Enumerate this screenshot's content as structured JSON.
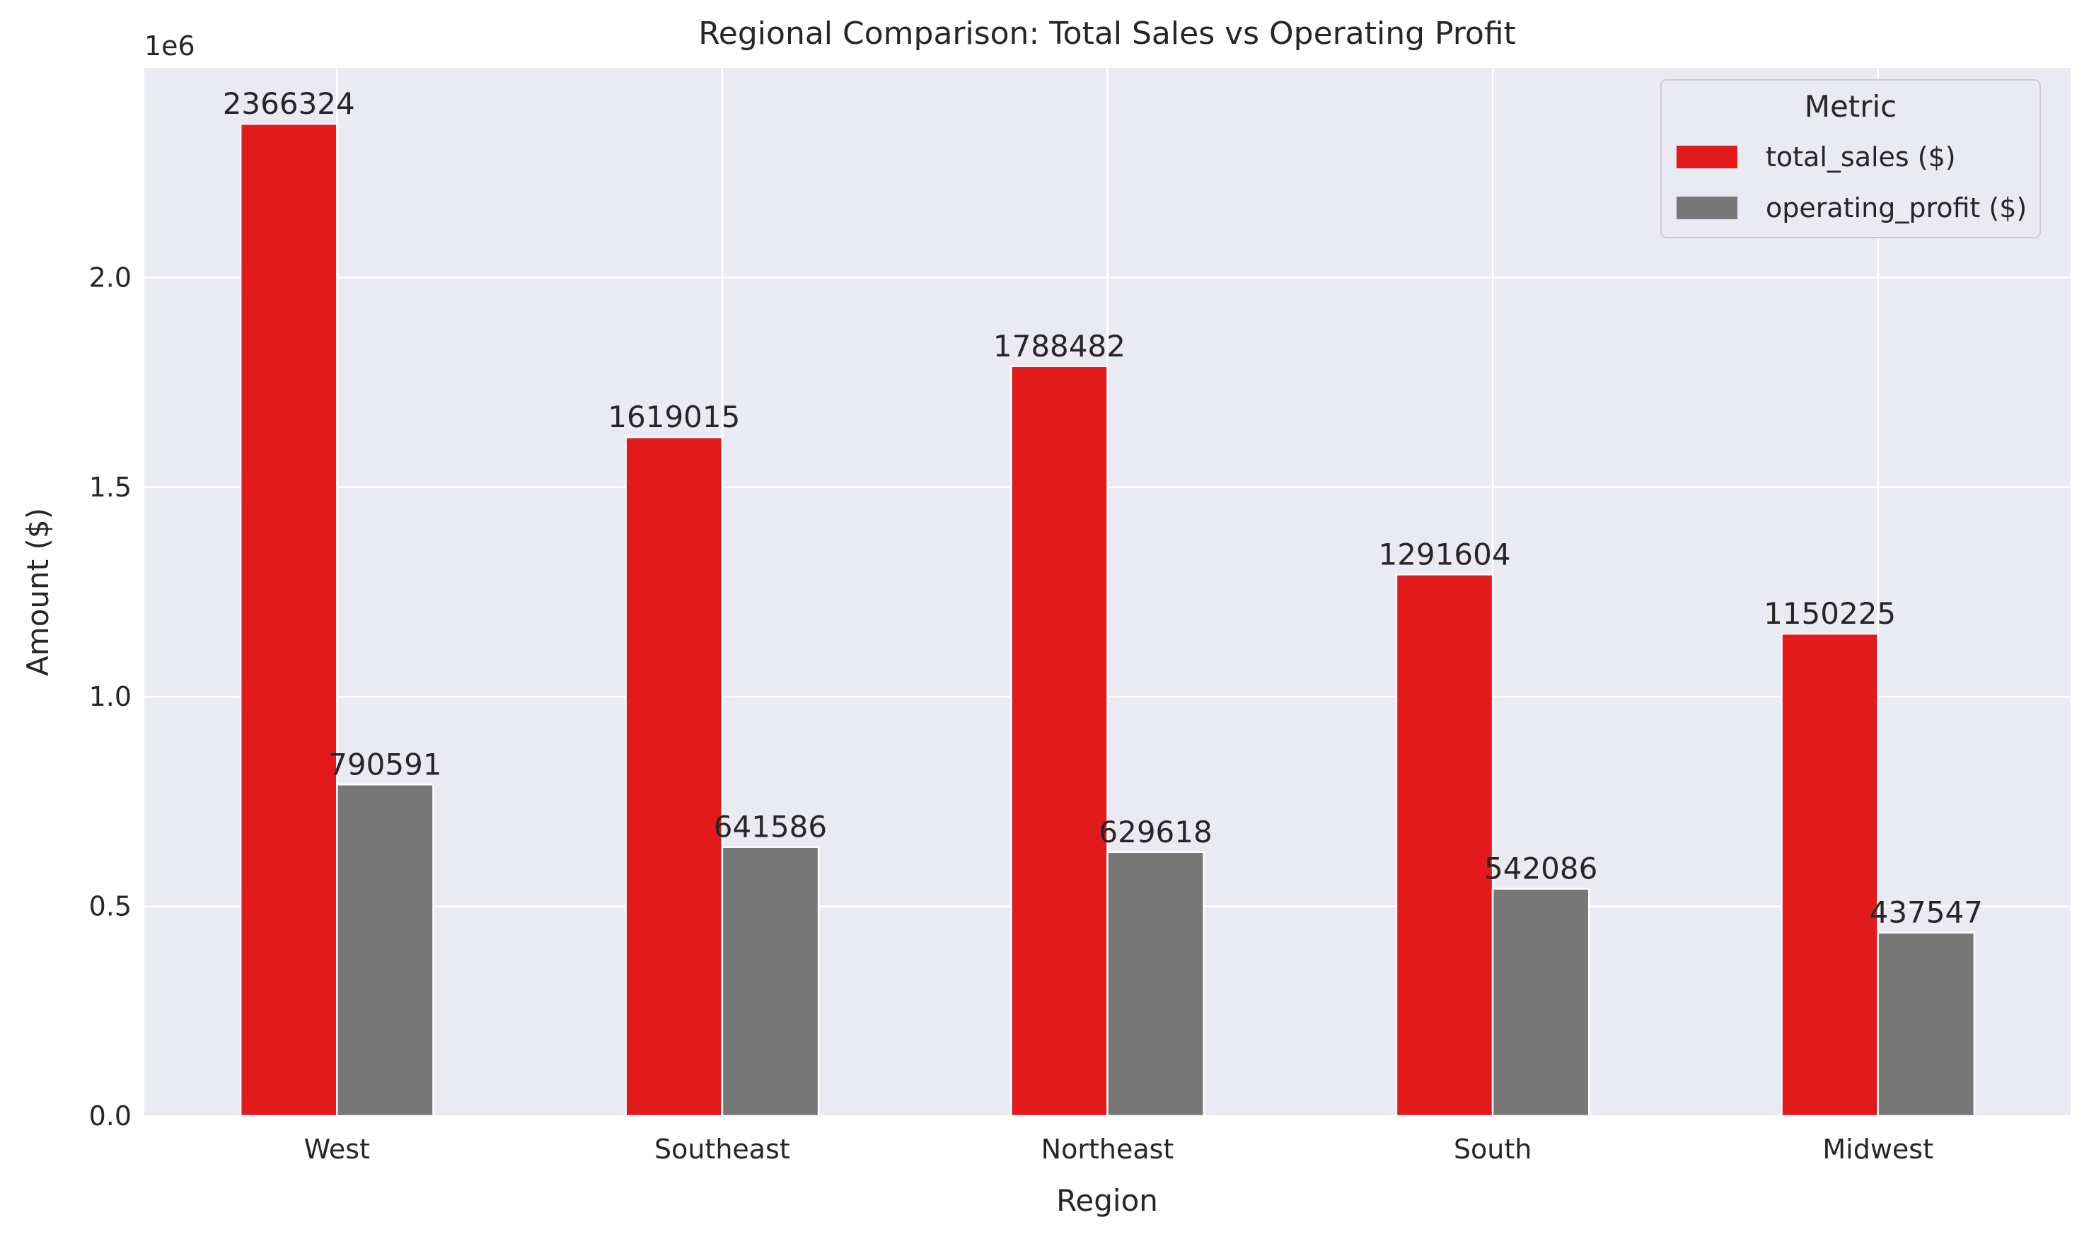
{
  "chart_data": {
    "type": "bar",
    "title": "Regional Comparison: Total Sales vs Operating Profit",
    "xlabel": "Region",
    "ylabel": "Amount ($)",
    "y_offset_text": "1e6",
    "ylim": [
      0,
      2.5
    ],
    "y_ticks": [
      "0.0",
      "0.5",
      "1.0",
      "1.5",
      "2.0"
    ],
    "y_tick_values": [
      0,
      0.5,
      1.0,
      1.5,
      2.0
    ],
    "categories": [
      "West",
      "Southeast",
      "Northeast",
      "South",
      "Midwest"
    ],
    "series": [
      {
        "name": "total_sales ($)",
        "color": "#e31a1c",
        "values": [
          2366324,
          1619015,
          1788482,
          1291604,
          1150225
        ]
      },
      {
        "name": "operating_profit ($)",
        "color": "#777777",
        "values": [
          790591,
          641586,
          629618,
          542086,
          437547
        ]
      }
    ],
    "data_labels": true,
    "grid": true,
    "legend": {
      "title": "Metric",
      "position": "top-right"
    }
  },
  "colors": {
    "plot_background": "#eaeaf2",
    "grid": "#ffffff"
  }
}
